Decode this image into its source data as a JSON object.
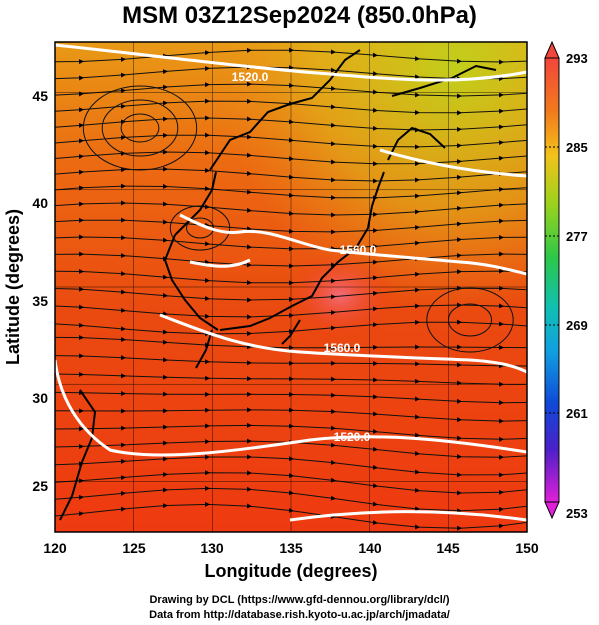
{
  "title": "MSM 03Z12Sep2024 (850.0hPa)",
  "axes": {
    "xlabel": "Longitude (degrees)",
    "ylabel": "Latitude  (degrees)",
    "xticks": [
      "120",
      "125",
      "130",
      "135",
      "140",
      "145",
      "150"
    ],
    "yticks": [
      "25",
      "30",
      "35",
      "40",
      "45"
    ]
  },
  "colorbar": {
    "labels": [
      "293",
      "285",
      "277",
      "269",
      "261",
      "253"
    ]
  },
  "contour_labels": [
    "1520.0",
    "1560.0",
    "1560.0",
    "1520.0"
  ],
  "credits": {
    "line1": "Drawing by DCL (https://www.gfd-dennou.org/library/dcl/)",
    "line2": "Data from http://database.rish.kyoto-u.ac.jp/arch/jmadata/"
  },
  "chart_data": {
    "type": "heatmap",
    "title": "MSM 03Z12Sep2024 (850.0hPa)",
    "xlabel": "Longitude (degrees)",
    "ylabel": "Latitude  (degrees)",
    "xlim": [
      120,
      150
    ],
    "ylim": [
      22.4,
      47.6
    ],
    "xticks": [
      120,
      125,
      130,
      135,
      140,
      145,
      150
    ],
    "yticks": [
      25,
      30,
      35,
      40,
      45
    ],
    "colorbar": {
      "range": [
        253,
        293
      ],
      "ticks": [
        293,
        285,
        277,
        269,
        261,
        253
      ]
    },
    "contours": [
      {
        "label": "1520.0",
        "lon": 137.5,
        "lat": 46.5
      },
      {
        "label": "1560.0",
        "lon": 142.5,
        "lat": 37.5
      },
      {
        "label": "1560.0",
        "lon": 140.5,
        "lat": 32.5
      },
      {
        "label": "1520.0",
        "lon": 141.5,
        "lat": 27.5
      }
    ],
    "grid": true
  }
}
